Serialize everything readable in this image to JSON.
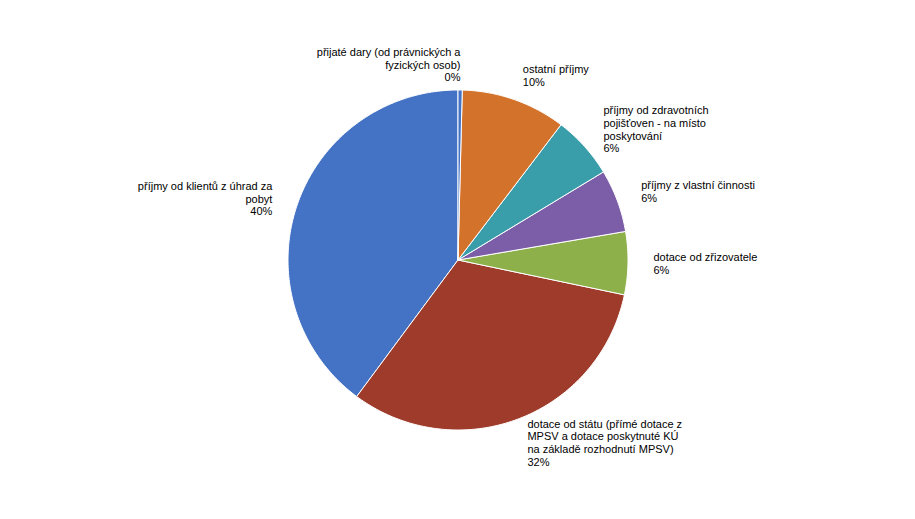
{
  "chart_data": {
    "type": "pie",
    "categories": [
      "příjmy od klientů z úhrad za\npobyt",
      "dotace od státu (přímé dotace z\nMPSV a dotace poskytnuté KÚ\nna základě rozhodnutí MPSV)",
      "dotace od zřizovatele",
      "příjmy z vlastní činnosti",
      "příjmy od zdravotních\npojišťoven - na místo\nposkytování",
      "ostatní příjmy",
      "přijaté dary (od právnických a\nfyzických osob)"
    ],
    "values": [
      40,
      32,
      6,
      6,
      6,
      10,
      0.4
    ],
    "value_labels": [
      "40%",
      "32%",
      "6%",
      "6%",
      "6%",
      "10%",
      "0%"
    ],
    "colors": [
      "#4472C4",
      "#9E3B2B",
      "#8DB04A",
      "#7B5EA7",
      "#3A9DAA",
      "#D2722B",
      "#4472C4"
    ]
  }
}
